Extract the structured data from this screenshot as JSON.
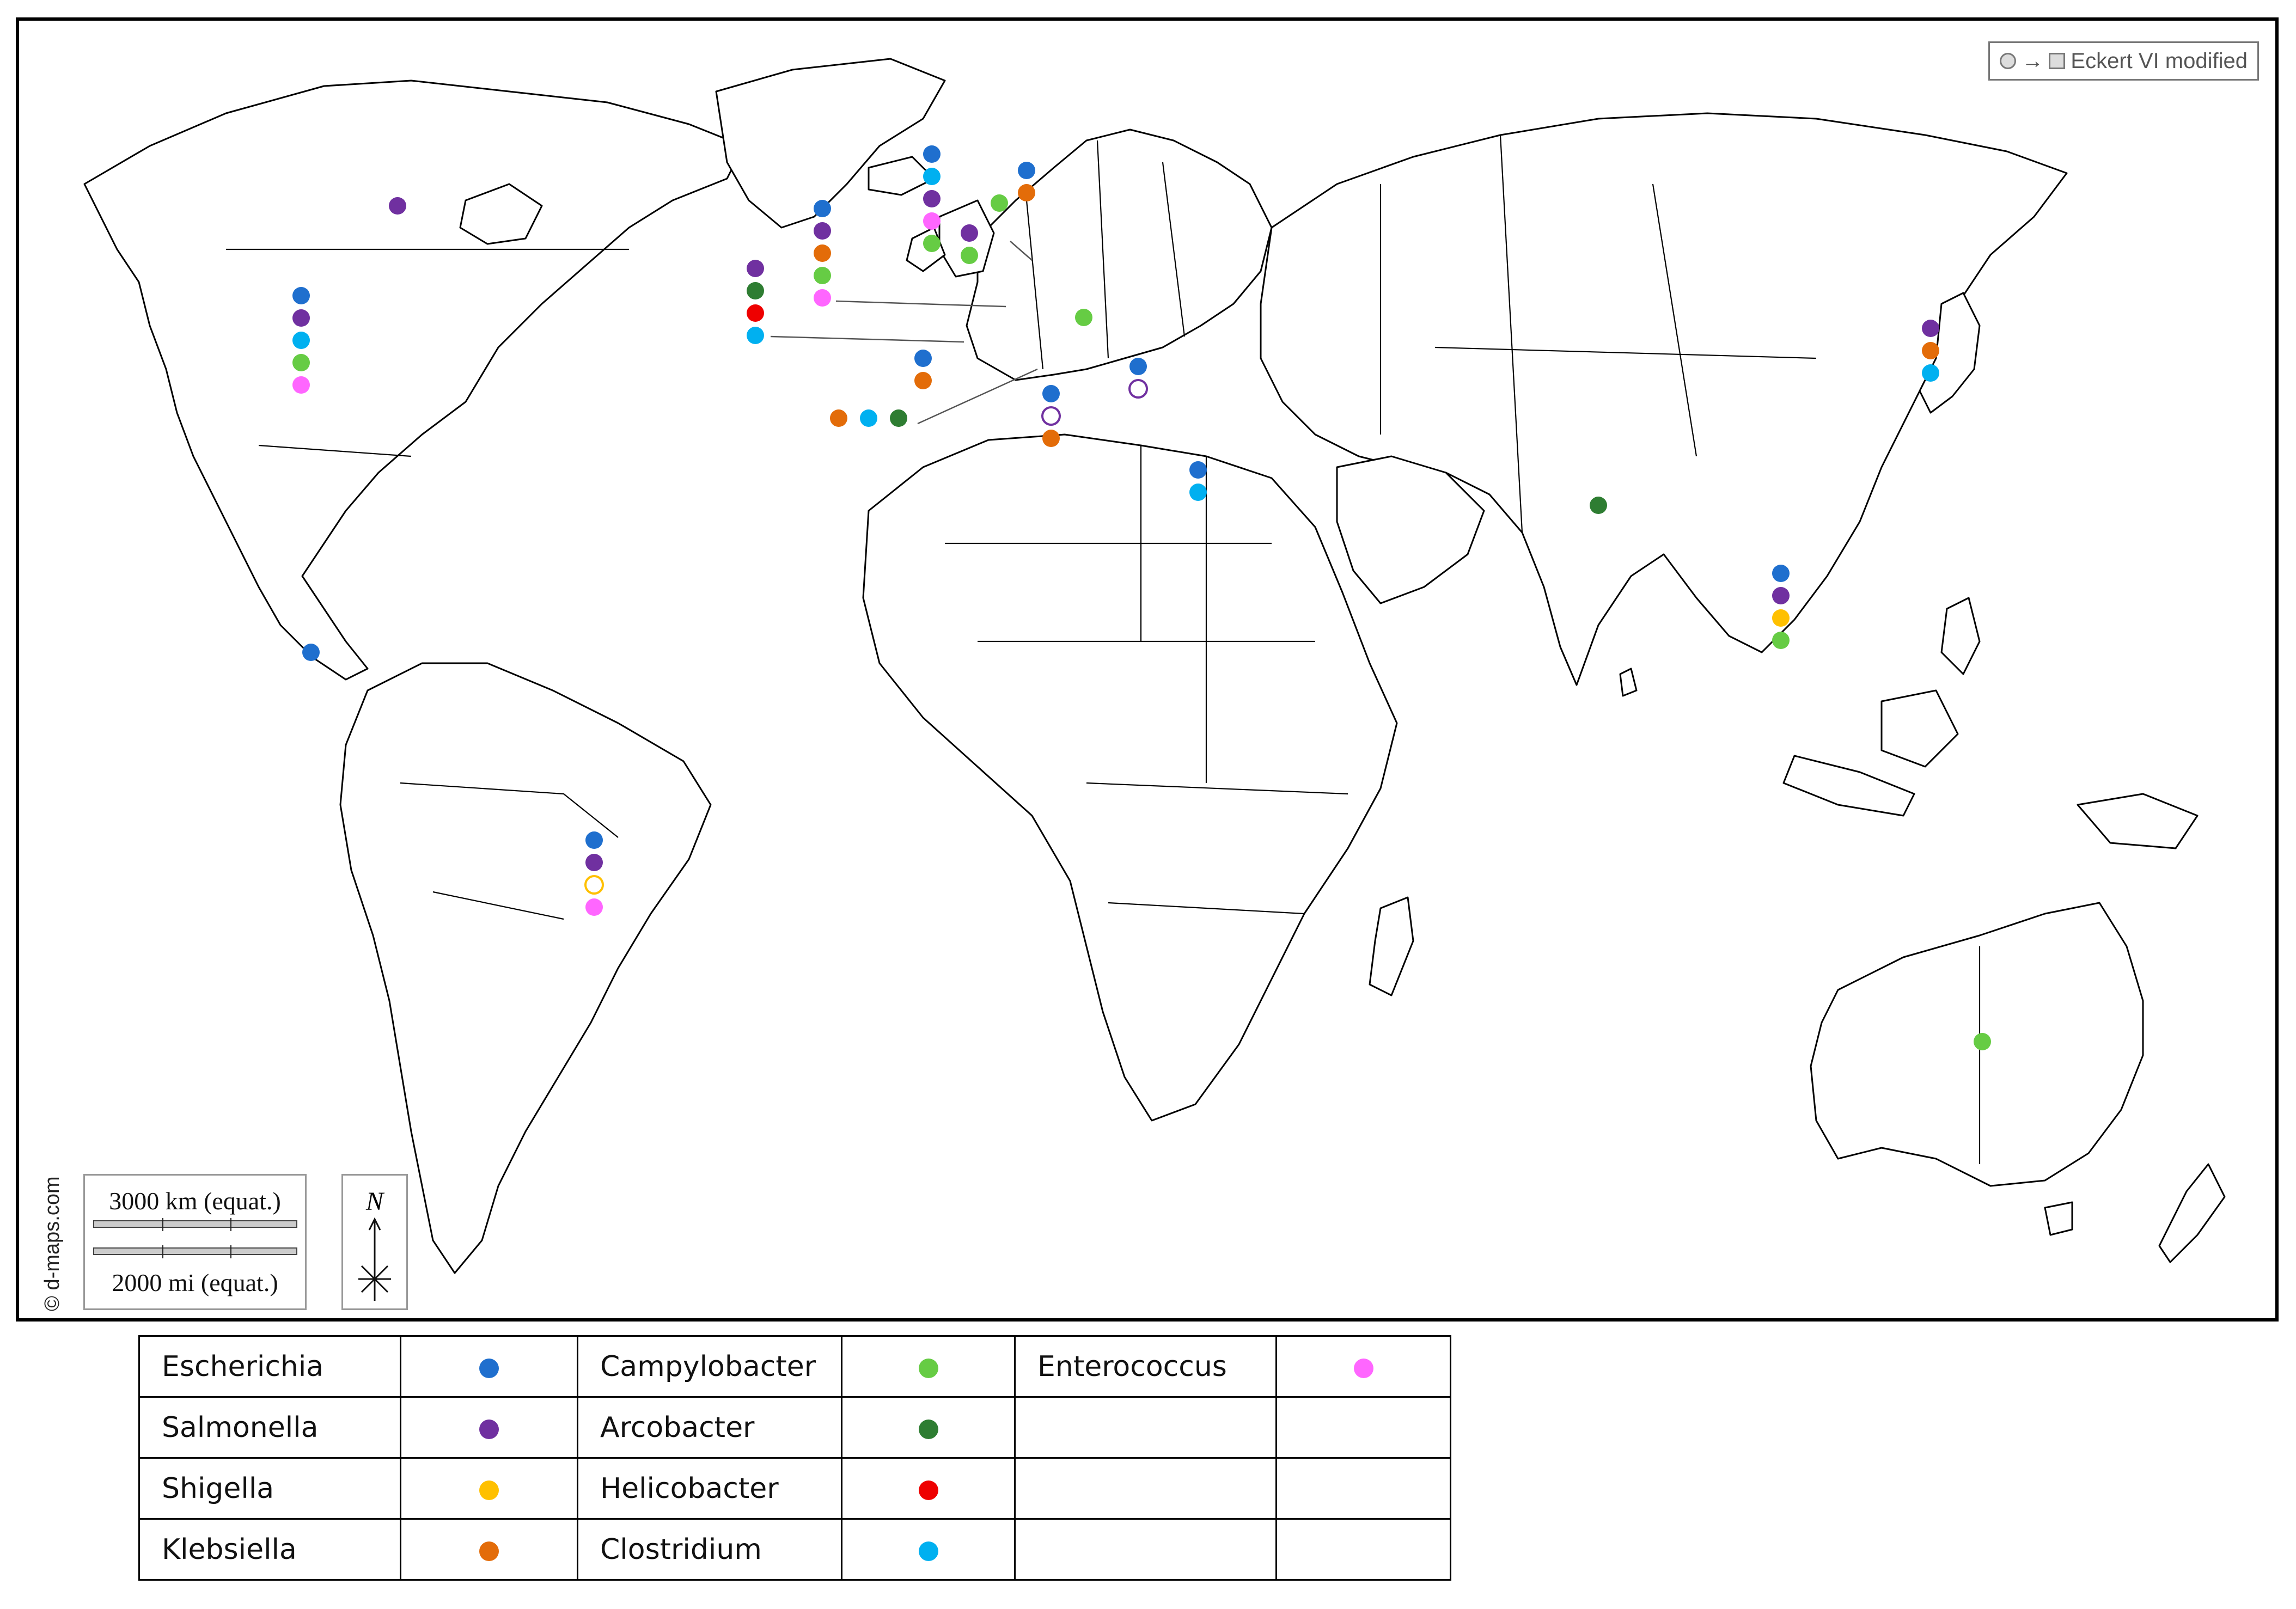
{
  "projection": {
    "label": "Eckert VI modified"
  },
  "credit": "© d-maps.com",
  "scale": {
    "km_label": "3000 km (equat.)",
    "mi_label": "2000 mi (equat.)"
  },
  "compass": {
    "label": "N"
  },
  "colors": {
    "Escherichia": "#1f6fce",
    "Salmonella": "#7030a0",
    "Shigella": "#ffc000",
    "Klebsiella": "#e36c09",
    "Campylobacter": "#66cc44",
    "Arcobacter": "#2e7d32",
    "Helicobacter": "#ee0000",
    "Clostridium": "#00b0f0",
    "Enterococcus": "#ff66ff"
  },
  "legend": [
    [
      {
        "name": "Escherichia",
        "genus": "Escherichia"
      },
      {
        "name": "Campylobacter",
        "genus": "Campylobacter"
      },
      {
        "name": "Enterococcus",
        "genus": "Enterococcus"
      }
    ],
    [
      {
        "name": "Salmonella",
        "genus": "Salmonella"
      },
      {
        "name": "Arcobacter",
        "genus": "Arcobacter"
      },
      {
        "name": "",
        "genus": ""
      }
    ],
    [
      {
        "name": "Shigella",
        "genus": "Shigella"
      },
      {
        "name": "Helicobacter",
        "genus": "Helicobacter"
      },
      {
        "name": "",
        "genus": ""
      }
    ],
    [
      {
        "name": "Klebsiella",
        "genus": "Klebsiella"
      },
      {
        "name": "Clostridium",
        "genus": "Clostridium"
      },
      {
        "name": "",
        "genus": ""
      }
    ]
  ],
  "locations": [
    {
      "region": "canada",
      "genera": [
        "Salmonella"
      ]
    },
    {
      "region": "united-states",
      "genera": [
        "Escherichia",
        "Salmonella",
        "Clostridium",
        "Campylobacter",
        "Enterococcus"
      ]
    },
    {
      "region": "central-america",
      "genera": [
        "Escherichia"
      ]
    },
    {
      "region": "brazil",
      "genera": [
        "Escherichia",
        "Salmonella",
        "Shigella",
        "Enterococcus"
      ],
      "hollow": [
        "Shigella"
      ]
    },
    {
      "region": "ireland",
      "genera": [
        "Escherichia",
        "Clostridium",
        "Salmonella",
        "Enterococcus",
        "Campylobacter"
      ]
    },
    {
      "region": "united-kingdom",
      "genera": [
        "Salmonella",
        "Campylobacter"
      ]
    },
    {
      "region": "denmark",
      "genera": [
        "Campylobacter"
      ]
    },
    {
      "region": "sweden",
      "genera": [
        "Escherichia",
        "Klebsiella"
      ]
    },
    {
      "region": "france",
      "genera": [
        "Escherichia",
        "Salmonella",
        "Klebsiella",
        "Campylobacter",
        "Enterococcus"
      ]
    },
    {
      "region": "spain",
      "genera": [
        "Salmonella",
        "Arcobacter",
        "Helicobacter",
        "Clostridium"
      ]
    },
    {
      "region": "portugal",
      "genera": [
        "Escherichia",
        "Klebsiella"
      ]
    },
    {
      "region": "italy",
      "genera": [
        "Klebsiella",
        "Clostridium",
        "Arcobacter"
      ]
    },
    {
      "region": "serbia",
      "genera": [
        "Campylobacter"
      ]
    },
    {
      "region": "greece",
      "genera": [
        "Escherichia",
        "Salmonella"
      ],
      "hollow": [
        "Salmonella"
      ]
    },
    {
      "region": "tunisia",
      "genera": [
        "Escherichia",
        "Salmonella",
        "Klebsiella"
      ],
      "hollow": [
        "Salmonella"
      ]
    },
    {
      "region": "egypt",
      "genera": [
        "Escherichia",
        "Clostridium"
      ]
    },
    {
      "region": "india",
      "genera": [
        "Arcobacter"
      ]
    },
    {
      "region": "thailand",
      "genera": [
        "Escherichia",
        "Salmonella",
        "Shigella",
        "Campylobacter"
      ]
    },
    {
      "region": "japan",
      "genera": [
        "Salmonella",
        "Klebsiella",
        "Clostridium"
      ]
    },
    {
      "region": "australia",
      "genera": [
        "Campylobacter"
      ]
    }
  ]
}
